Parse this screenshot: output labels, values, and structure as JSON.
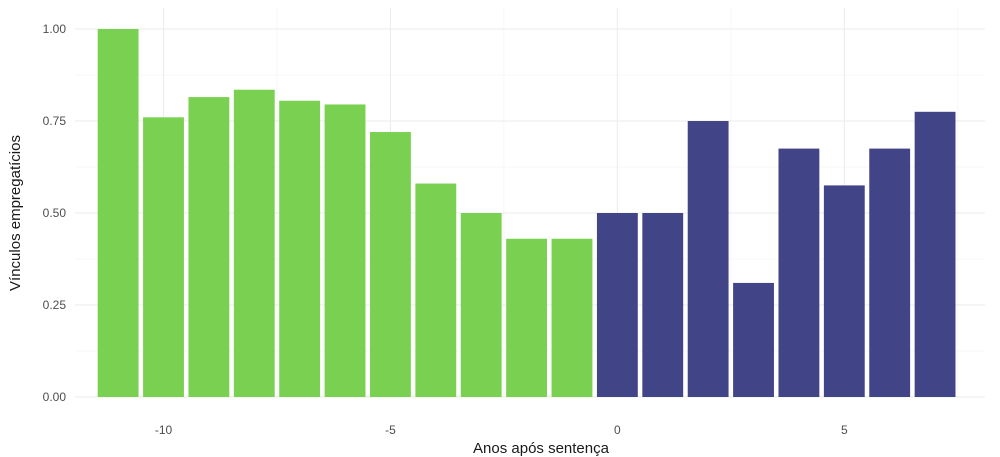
{
  "chart_data": {
    "type": "bar",
    "title": "",
    "xlabel": "Anos após sentença",
    "ylabel": "Vínculos empregatícios",
    "x": [
      -11,
      -10,
      -9,
      -8,
      -7,
      -6,
      -5,
      -4,
      -3,
      -2,
      -1,
      0,
      1,
      2,
      3,
      4,
      5,
      6,
      7
    ],
    "values": [
      1.0,
      0.76,
      0.815,
      0.835,
      0.805,
      0.795,
      0.72,
      0.58,
      0.5,
      0.43,
      0.43,
      0.5,
      0.5,
      0.75,
      0.31,
      0.675,
      0.575,
      0.675,
      0.775
    ],
    "groups": [
      {
        "from": -11,
        "to": -1,
        "color": "#7ad151"
      },
      {
        "from": 0,
        "to": 7,
        "color": "#414487"
      }
    ],
    "xlim": [
      -12,
      8
    ],
    "ylim": [
      0,
      1.05
    ],
    "xticks": [
      -10,
      -5,
      0,
      5
    ],
    "xtick_labels": [
      "-10",
      "-5",
      "0",
      "5"
    ],
    "yticks": [
      0,
      0.25,
      0.5,
      0.75,
      1.0
    ],
    "ytick_labels": [
      "0.00",
      "0.25",
      "0.50",
      "0.75",
      "1.00"
    ],
    "grid": true,
    "legend": "none",
    "colors": {
      "grid_major": "#ebebeb",
      "grid_minor": "#f5f5f5",
      "text": "#4d4d4d"
    }
  }
}
